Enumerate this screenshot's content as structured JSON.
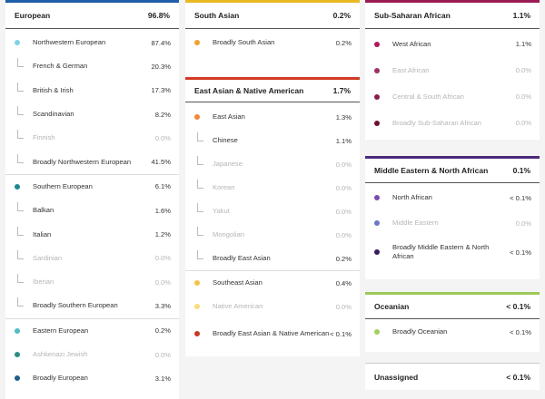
{
  "european": {
    "title": "European",
    "value": "96.8%",
    "color": "#1f5fa8",
    "groups": [
      {
        "name": "Northwestern European",
        "value": "87.4%",
        "dot": "#7fd3e8",
        "subs": [
          {
            "name": "French & German",
            "value": "20.3%",
            "muted": false
          },
          {
            "name": "British & Irish",
            "value": "17.3%",
            "muted": false
          },
          {
            "name": "Scandinavian",
            "value": "8.2%",
            "muted": false
          },
          {
            "name": "Finnish",
            "value": "0.0%",
            "muted": true
          },
          {
            "name": "Broadly Northwestern European",
            "value": "41.5%",
            "muted": false
          }
        ]
      },
      {
        "name": "Southern European",
        "value": "6.1%",
        "dot": "#1b8a8f",
        "subs": [
          {
            "name": "Balkan",
            "value": "1.6%",
            "muted": false
          },
          {
            "name": "Italian",
            "value": "1.2%",
            "muted": false
          },
          {
            "name": "Sardinian",
            "value": "0.0%",
            "muted": true
          },
          {
            "name": "Iberian",
            "value": "0.0%",
            "muted": true
          },
          {
            "name": "Broadly Southern European",
            "value": "3.3%",
            "muted": false
          }
        ]
      },
      {
        "name": "Eastern European",
        "value": "0.2%",
        "dot": "#4fbcc4",
        "subs": []
      },
      {
        "name": "Ashkenazi Jewish",
        "value": "0.0%",
        "dot": "#2e8d86",
        "muted": true,
        "subs": []
      },
      {
        "name": "Broadly European",
        "value": "3.1%",
        "dot": "#1e5e8a",
        "subs": []
      }
    ]
  },
  "south_asian": {
    "title": "South Asian",
    "value": "0.2%",
    "color": "#e8b923",
    "rows": [
      {
        "name": "Broadly South Asian",
        "value": "0.2%",
        "dot": "#f0a030"
      }
    ]
  },
  "east_asian": {
    "title": "East Asian & Native American",
    "value": "1.7%",
    "color": "#d23a24",
    "groups": [
      {
        "name": "East Asian",
        "value": "1.3%",
        "dot": "#f0883a",
        "subs": [
          {
            "name": "Chinese",
            "value": "1.1%",
            "muted": false
          },
          {
            "name": "Japanese",
            "value": "0.0%",
            "muted": true
          },
          {
            "name": "Korean",
            "value": "0.0%",
            "muted": true
          },
          {
            "name": "Yakut",
            "value": "0.0%",
            "muted": true
          },
          {
            "name": "Mongolian",
            "value": "0.0%",
            "muted": true
          },
          {
            "name": "Broadly East Asian",
            "value": "0.2%",
            "muted": false
          }
        ]
      },
      {
        "name": "Southeast Asian",
        "value": "0.4%",
        "dot": "#f5c243",
        "subs": []
      },
      {
        "name": "Native American",
        "value": "0.0%",
        "dot": "#f8dd7a",
        "muted": true,
        "subs": []
      },
      {
        "name": "Broadly East Asian & Native American",
        "value": "< 0.1%",
        "dot": "#c9392a",
        "subs": []
      }
    ]
  },
  "sub_saharan": {
    "title": "Sub-Saharan African",
    "value": "1.1%",
    "color": "#9c1a52",
    "rows": [
      {
        "name": "West African",
        "value": "1.1%",
        "dot": "#b0175e",
        "muted": false
      },
      {
        "name": "East African",
        "value": "0.0%",
        "dot": "#a0306a",
        "muted": true
      },
      {
        "name": "Central & South African",
        "value": "0.0%",
        "dot": "#8a1c4a",
        "muted": true
      },
      {
        "name": "Broadly Sub-Saharan African",
        "value": "0.0%",
        "dot": "#6d1233",
        "muted": true
      }
    ]
  },
  "mena": {
    "title": "Middle Eastern & North African",
    "value": "0.1%",
    "color": "#4b2a7a",
    "rows": [
      {
        "name": "North African",
        "value": "< 0.1%",
        "dot": "#7a4bb0",
        "muted": false
      },
      {
        "name": "Middle Eastern",
        "value": "0.0%",
        "dot": "#6a76c8",
        "muted": true
      },
      {
        "name": "Broadly Middle Eastern & North African",
        "value": "< 0.1%",
        "dot": "#3a1a5e",
        "muted": false
      }
    ]
  },
  "oceanian": {
    "title": "Oceanian",
    "value": "< 0.1%",
    "color": "#9cc85a",
    "rows": [
      {
        "name": "Broadly Oceanian",
        "value": "< 0.1%",
        "dot": "#a3cf5e",
        "muted": false
      }
    ]
  },
  "unassigned": {
    "title": "Unassigned",
    "value": "< 0.1%",
    "color": "#cccccc"
  }
}
